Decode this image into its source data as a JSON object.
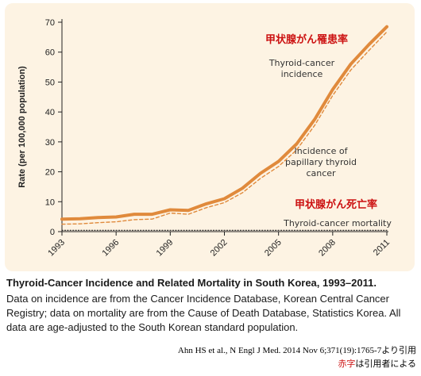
{
  "chart_data": {
    "type": "line",
    "ylabel": "Rate (per 100,000 population)",
    "xlim": [
      1993,
      2011
    ],
    "ylim": [
      0,
      70
    ],
    "yticks": [
      0,
      10,
      20,
      30,
      40,
      50,
      60,
      70
    ],
    "xticks": [
      "1993",
      "1996",
      "1999",
      "2002",
      "2005",
      "2008",
      "2011"
    ],
    "x": [
      1993,
      1994,
      1995,
      1996,
      1997,
      1998,
      1999,
      2000,
      2001,
      2002,
      2003,
      2004,
      2005,
      2006,
      2007,
      2008,
      2009,
      2010,
      2011
    ],
    "series": [
      {
        "name": "Thyroid-cancer incidence",
        "style": "solid",
        "color": "#e08a3c",
        "values": [
          4.2,
          4.3,
          4.7,
          4.9,
          5.8,
          5.8,
          7.3,
          7.1,
          9.3,
          11.0,
          14.5,
          19.5,
          23.5,
          29.3,
          37.5,
          47.5,
          56.0,
          62.5,
          68.5
        ]
      },
      {
        "name": "Incidence of papillary thyroid cancer",
        "style": "dashed",
        "color": "#e08a3c",
        "values": [
          2.5,
          2.6,
          3.0,
          3.3,
          4.0,
          4.2,
          6.2,
          5.8,
          8.0,
          9.7,
          13.0,
          17.8,
          21.8,
          27.3,
          35.5,
          45.5,
          54.0,
          60.5,
          66.8
        ]
      },
      {
        "name": "Thyroid-cancer mortality",
        "style": "dotted",
        "color": "#222222",
        "values": [
          0.45,
          0.45,
          0.45,
          0.45,
          0.45,
          0.45,
          0.45,
          0.45,
          0.45,
          0.45,
          0.45,
          0.45,
          0.45,
          0.45,
          0.45,
          0.45,
          0.45,
          0.45,
          0.45
        ]
      }
    ],
    "annotations": [
      {
        "text": "甲状腺がん罹患率",
        "color": "#cc1111"
      },
      {
        "text": "Thyroid-cancer\nincidence",
        "color": "#333333"
      },
      {
        "text": "Incidence of\npapillary thyroid\ncancer",
        "color": "#333333"
      },
      {
        "text": "甲状腺がん死亡率",
        "color": "#cc1111"
      },
      {
        "text": "Thyroid-cancer mortality",
        "color": "#333333"
      }
    ]
  },
  "caption": {
    "title": "Thyroid-Cancer Incidence and Related Mortality in South Korea, 1993–2011.",
    "body": "Data on incidence are from the Cancer Incidence Database, Korean Central Cancer Registry; data on mortality are from the Cause of Death Database, Statistics Korea. All data are age-adjusted to the South Korean standard population."
  },
  "citation": "Ahn HS et al., N Engl J Med. 2014 Nov 6;371(19):1765-7より引用",
  "note": {
    "highlight": "赤字",
    "rest": "は引用者による"
  }
}
